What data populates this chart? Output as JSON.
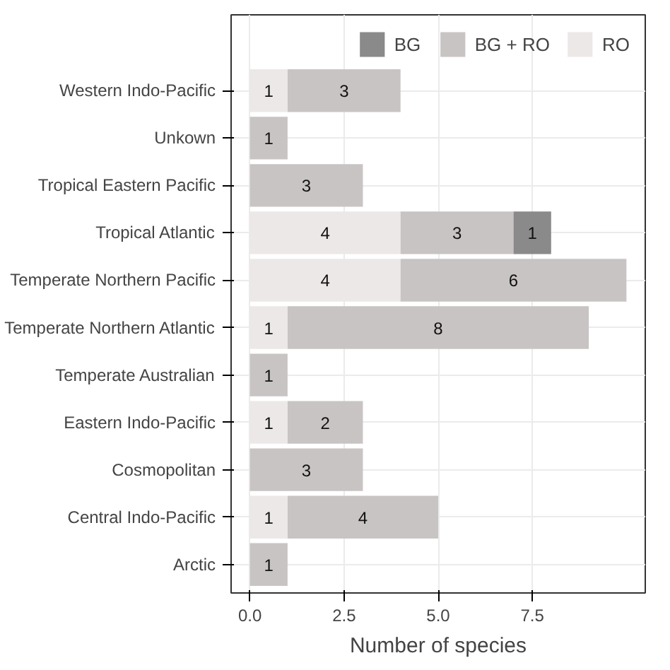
{
  "chart_data": {
    "type": "bar",
    "orientation": "horizontal",
    "stacked": true,
    "xlabel": "Number of species",
    "categories": [
      "Western Indo-Pacific",
      "Unkown",
      "Tropical Eastern Pacific",
      "Tropical Atlantic",
      "Temperate Northern Pacific",
      "Temperate Northern Atlantic",
      "Temperate Australian",
      "Eastern Indo-Pacific",
      "Cosmopolitan",
      "Central Indo-Pacific",
      "Arctic"
    ],
    "series": [
      {
        "name": "RO",
        "color": "#ede8e8",
        "values": [
          1,
          null,
          null,
          4,
          4,
          1,
          null,
          1,
          null,
          1,
          null
        ]
      },
      {
        "name": "BG + RO",
        "color": "#c9c4c4",
        "values": [
          3,
          1,
          3,
          3,
          6,
          8,
          1,
          2,
          3,
          4,
          1
        ]
      },
      {
        "name": "BG",
        "color": "#8a8a8a",
        "values": [
          null,
          null,
          null,
          1,
          null,
          null,
          null,
          null,
          null,
          null,
          null
        ]
      }
    ],
    "xlim": [
      -0.5,
      10.5
    ],
    "xticks": [
      {
        "value": 0,
        "label": "0.0"
      },
      {
        "value": 2.5,
        "label": "2.5"
      },
      {
        "value": 5,
        "label": "5.0"
      },
      {
        "value": 7.5,
        "label": "7.5"
      }
    ],
    "grid": true,
    "legend": "top right",
    "data_labels": true
  }
}
